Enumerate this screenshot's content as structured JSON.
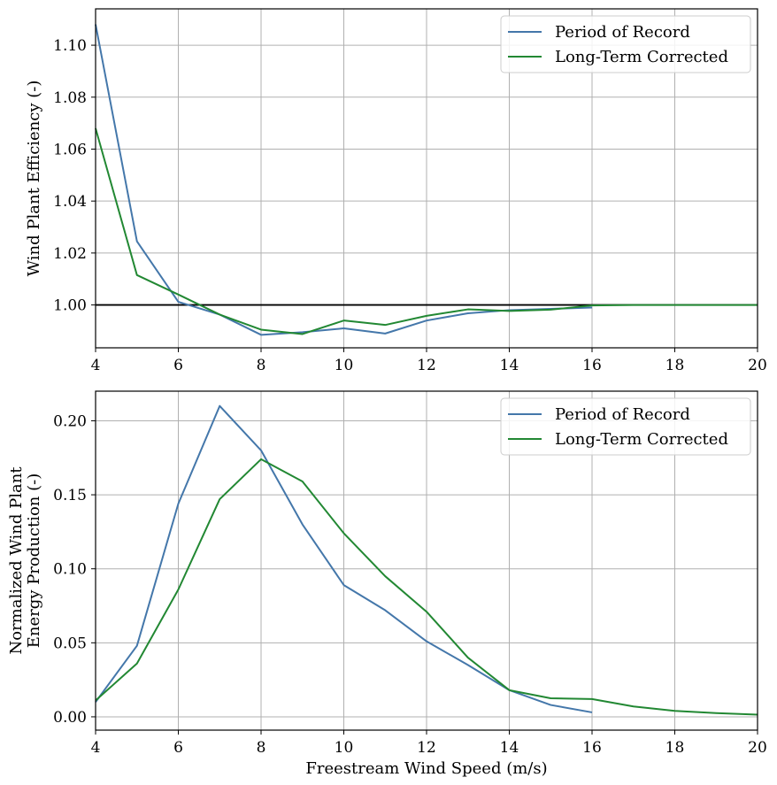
{
  "colors": {
    "period_of_record": "#4477aa",
    "long_term_corrected": "#228833",
    "reference_line": "#000000",
    "grid": "#b0b0b0"
  },
  "chart_data": [
    {
      "type": "line",
      "title": "",
      "xlabel": "",
      "ylabel": "Wind Plant Efficiency (-)",
      "xlim": [
        4,
        20
      ],
      "ylim": [
        0.9835,
        1.114
      ],
      "xticks": [
        4,
        6,
        8,
        10,
        12,
        14,
        16,
        18,
        20
      ],
      "yticks": [
        1.0,
        1.02,
        1.04,
        1.06,
        1.08,
        1.1
      ],
      "ytick_labels": [
        "1.00",
        "1.02",
        "1.04",
        "1.06",
        "1.08",
        "1.10"
      ],
      "grid": true,
      "legend_position": "top-right",
      "reference_line": {
        "y": 1.0,
        "x_range": [
          4,
          20
        ]
      },
      "series": [
        {
          "name": "Period of Record",
          "color_key": "period_of_record",
          "x": [
            4,
            5,
            6,
            7,
            8,
            9,
            10,
            11,
            12,
            13,
            14,
            15,
            16
          ],
          "y": [
            1.108,
            1.0245,
            1.0012,
            0.9963,
            0.9885,
            0.9895,
            0.991,
            0.989,
            0.994,
            0.9968,
            0.998,
            0.9985,
            0.999
          ]
        },
        {
          "name": "Long-Term Corrected",
          "color_key": "long_term_corrected",
          "x": [
            4,
            5,
            6,
            7,
            8,
            9,
            10,
            11,
            12,
            13,
            14,
            15,
            16,
            17,
            18,
            19,
            20
          ],
          "y": [
            1.068,
            1.0115,
            1.004,
            0.9963,
            0.9905,
            0.9888,
            0.994,
            0.9923,
            0.9958,
            0.9983,
            0.9977,
            0.9982,
            0.9998,
            1.0,
            1.0,
            1.0,
            1.0
          ]
        }
      ]
    },
    {
      "type": "line",
      "title": "",
      "xlabel": "Freestream Wind Speed (m/s)",
      "ylabel_lines": [
        "Normalized Wind Plant",
        "Energy Production (-)"
      ],
      "xlim": [
        4,
        20
      ],
      "ylim": [
        -0.009,
        0.22
      ],
      "xticks": [
        4,
        6,
        8,
        10,
        12,
        14,
        16,
        18,
        20
      ],
      "yticks": [
        0.0,
        0.05,
        0.1,
        0.15,
        0.2
      ],
      "ytick_labels": [
        "0.00",
        "0.05",
        "0.10",
        "0.15",
        "0.20"
      ],
      "grid": true,
      "legend_position": "top-right",
      "series": [
        {
          "name": "Period of Record",
          "color_key": "period_of_record",
          "x": [
            4,
            5,
            6,
            7,
            8,
            9,
            10,
            11,
            12,
            13,
            14,
            15,
            16
          ],
          "y": [
            0.01,
            0.048,
            0.144,
            0.21,
            0.18,
            0.13,
            0.089,
            0.072,
            0.051,
            0.035,
            0.018,
            0.008,
            0.003
          ]
        },
        {
          "name": "Long-Term Corrected",
          "color_key": "long_term_corrected",
          "x": [
            4,
            5,
            6,
            7,
            8,
            9,
            10,
            11,
            12,
            13,
            14,
            15,
            16,
            17,
            18,
            19,
            20
          ],
          "y": [
            0.011,
            0.036,
            0.086,
            0.147,
            0.174,
            0.159,
            0.124,
            0.095,
            0.071,
            0.04,
            0.018,
            0.0125,
            0.012,
            0.007,
            0.004,
            0.0025,
            0.0015
          ]
        }
      ]
    }
  ]
}
